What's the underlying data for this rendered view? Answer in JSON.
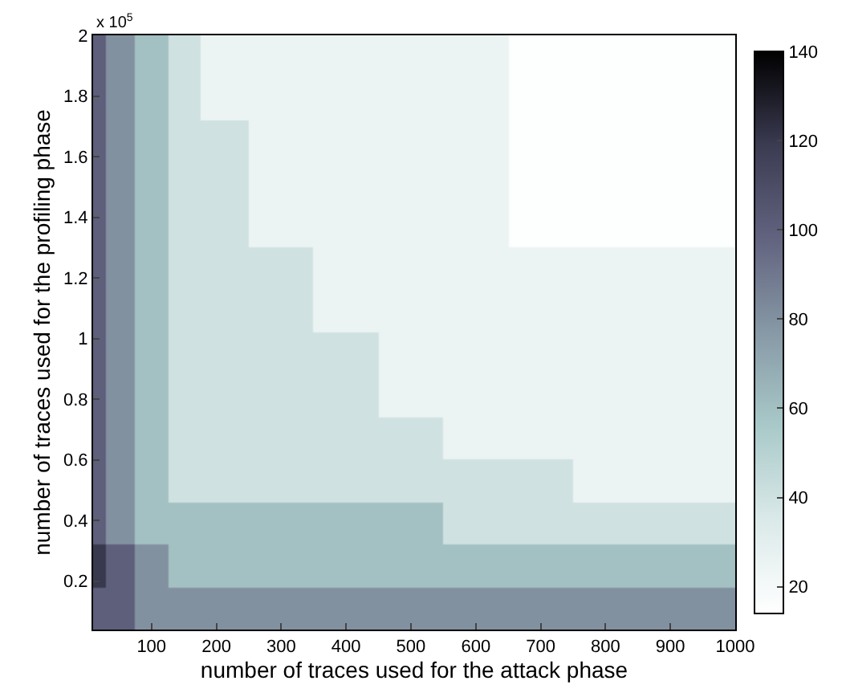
{
  "chart_data": {
    "type": "heatmap",
    "xlabel": "number of traces used for the attack phase",
    "ylabel": "number of traces used for the profiling phase",
    "annotations": [
      "x 10$^{5}$"
    ],
    "x": [
      10,
      50,
      100,
      150,
      200,
      300,
      400,
      500,
      600,
      700,
      800,
      900,
      1000
    ],
    "y": [
      1.93,
      1.79,
      1.65,
      1.51,
      1.37,
      1.23,
      1.09,
      0.95,
      0.81,
      0.67,
      0.53,
      0.39,
      0.25,
      0.11
    ],
    "cells": [
      [
        100,
        80,
        60,
        40,
        25,
        25,
        25,
        25,
        25,
        15,
        15,
        15,
        15
      ],
      [
        100,
        80,
        60,
        40,
        25,
        25,
        25,
        25,
        25,
        15,
        15,
        15,
        15
      ],
      [
        100,
        80,
        60,
        40,
        40,
        25,
        25,
        25,
        25,
        15,
        15,
        15,
        15
      ],
      [
        100,
        80,
        60,
        40,
        40,
        25,
        25,
        25,
        25,
        15,
        15,
        15,
        15
      ],
      [
        100,
        80,
        60,
        40,
        40,
        25,
        25,
        25,
        25,
        15,
        15,
        15,
        15
      ],
      [
        100,
        80,
        60,
        40,
        40,
        40,
        25,
        25,
        25,
        25,
        25,
        25,
        25
      ],
      [
        100,
        80,
        60,
        40,
        40,
        40,
        25,
        25,
        25,
        25,
        25,
        25,
        25
      ],
      [
        100,
        80,
        60,
        40,
        40,
        40,
        40,
        25,
        25,
        25,
        25,
        25,
        25
      ],
      [
        100,
        80,
        60,
        40,
        40,
        40,
        40,
        25,
        25,
        25,
        25,
        25,
        25
      ],
      [
        100,
        80,
        60,
        40,
        40,
        40,
        40,
        40,
        25,
        25,
        25,
        25,
        25
      ],
      [
        100,
        80,
        60,
        40,
        40,
        40,
        40,
        40,
        40,
        40,
        25,
        25,
        25
      ],
      [
        100,
        80,
        60,
        60,
        60,
        60,
        60,
        60,
        40,
        40,
        40,
        40,
        40
      ],
      [
        120,
        100,
        80,
        60,
        60,
        60,
        60,
        60,
        60,
        60,
        60,
        60,
        60
      ],
      [
        100,
        100,
        80,
        80,
        80,
        80,
        80,
        80,
        80,
        80,
        80,
        80,
        80
      ]
    ],
    "colors": [
      "#ffffff",
      "#dbe9e9",
      "#a9c9c9",
      "#8799a6",
      "#62637f",
      "#3b3b52",
      "#000000"
    ],
    "xlim": [
      10,
      1000
    ],
    "xticks": [
      100,
      200,
      300,
      400,
      500,
      600,
      700,
      800,
      900,
      1000
    ],
    "ylim": [
      0.04,
      2
    ],
    "yticks": [
      0.2,
      0.4,
      0.6,
      0.8,
      1,
      1.2,
      1.4,
      1.6,
      1.8,
      2
    ],
    "clim": [
      14,
      140
    ],
    "cticks": [
      20,
      40,
      60,
      80,
      100,
      120,
      140
    ]
  }
}
